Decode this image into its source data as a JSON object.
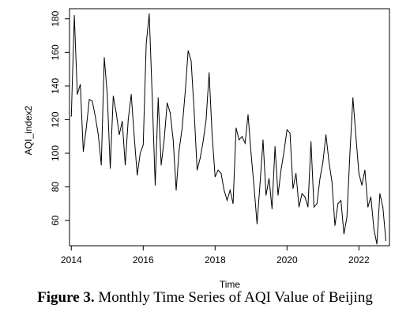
{
  "chart_data": {
    "type": "line",
    "xlabel": "Time",
    "ylabel": "AQI_index2",
    "xlim": [
      2013.95,
      2022.85
    ],
    "ylim": [
      45,
      186
    ],
    "x_ticks": [
      "2014",
      "2016",
      "2018",
      "2020",
      "2022"
    ],
    "x_tick_values": [
      2014,
      2016,
      2018,
      2020,
      2022
    ],
    "y_ticks": [
      "60",
      "80",
      "100",
      "120",
      "140",
      "160",
      "180"
    ],
    "y_tick_values": [
      60,
      80,
      100,
      120,
      140,
      160,
      180
    ],
    "grid": false,
    "line_color": "#000000",
    "start": 2014.0,
    "frequency": 12,
    "series": [
      {
        "values": [
          122,
          182,
          135,
          141,
          101,
          115,
          132,
          131,
          122,
          111,
          93,
          157,
          135,
          91,
          134,
          124,
          111,
          119,
          93,
          120,
          135,
          110,
          87,
          100,
          105,
          165,
          183,
          134,
          81,
          133,
          93,
          108,
          130,
          124,
          108,
          78,
          102,
          115,
          136,
          161,
          155,
          125,
          90,
          97,
          107,
          120,
          148,
          111,
          86,
          90,
          88,
          78,
          72,
          78,
          70,
          115,
          108,
          110,
          106,
          123,
          100,
          80,
          58,
          82,
          108,
          75,
          85,
          67,
          104,
          75,
          90,
          101,
          114,
          112,
          79,
          88,
          68,
          76,
          74,
          68,
          107,
          68,
          70,
          85,
          95,
          111,
          95,
          83,
          57,
          70,
          72,
          52,
          62,
          100,
          133,
          110,
          88,
          81,
          90,
          68,
          74,
          55,
          46,
          76,
          68,
          48
        ]
      }
    ]
  },
  "caption": {
    "label": "Figure 3.",
    "text": " Monthly Time Series of AQI Value of Beijing"
  }
}
